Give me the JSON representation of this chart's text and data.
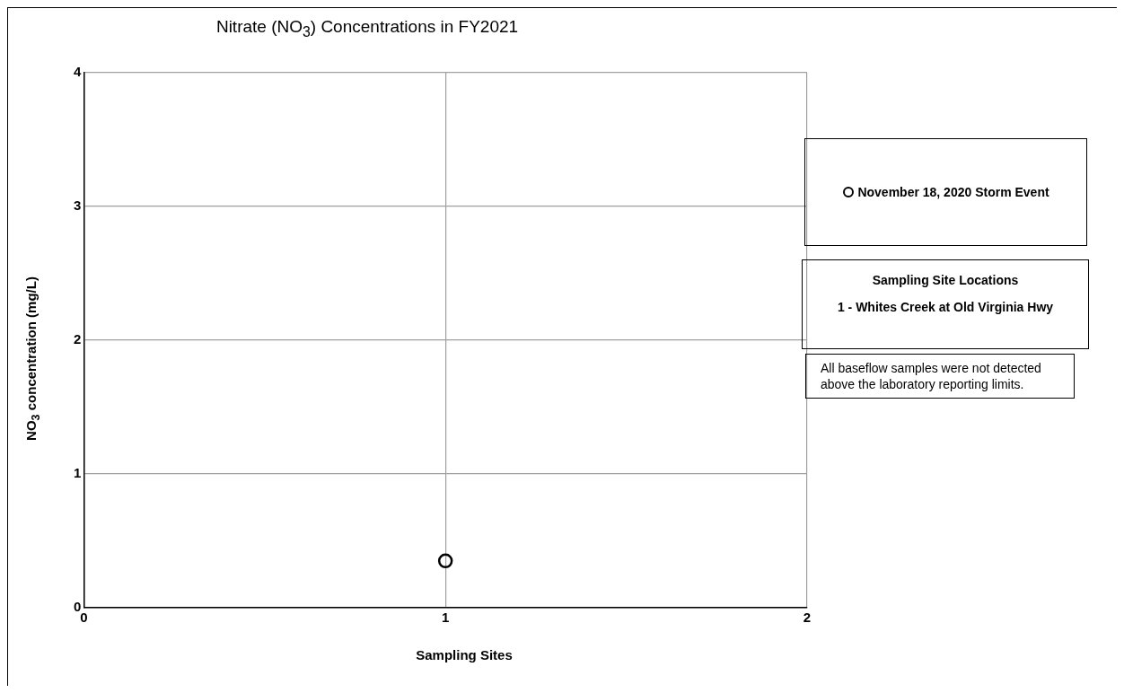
{
  "chart_data": {
    "type": "scatter",
    "title": "Nitrate (NO$_{3}$) Concentrations in FY2021",
    "xlabel": "Sampling Sites",
    "ylabel": "NO$_{3}$ concentration (mg/L)",
    "series": [
      {
        "name": "November 18, 2020 Storm Event",
        "color": "#000000",
        "x": [
          1
        ],
        "values": [
          0.35
        ]
      }
    ],
    "xlim": [
      0,
      2
    ],
    "xticks": [
      0,
      1,
      2
    ],
    "ylim": [
      0,
      4
    ],
    "yticks": [
      0,
      1,
      2,
      3,
      4
    ],
    "grid": true,
    "legend": "right",
    "marker": "circle",
    "annotations": [
      "Sampling Site Locations",
      "1 - Whites Creek at Old Virginia Hwy",
      "All baseflow samples were not detected above the laboratory reporting limits."
    ]
  }
}
